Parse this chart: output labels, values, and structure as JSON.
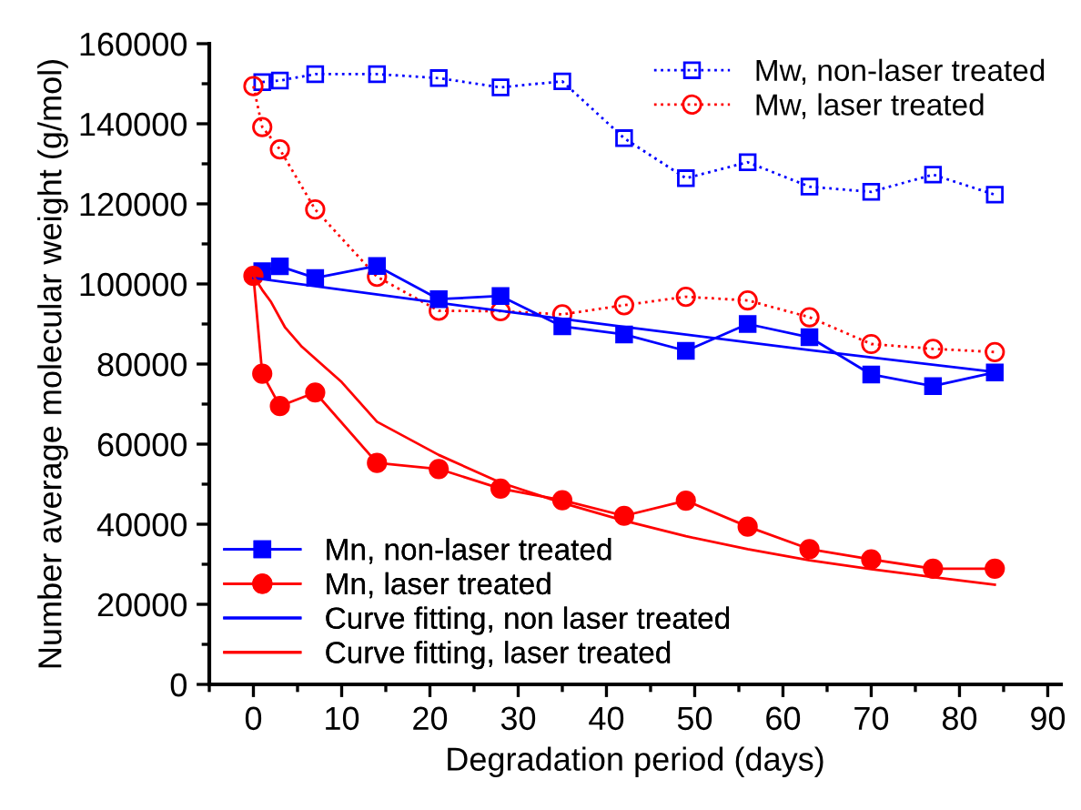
{
  "chart_data": {
    "type": "line",
    "xlabel": "Degradation period (days)",
    "ylabel": "Number average molecular weight (g/mol)",
    "xlim": [
      -5,
      91.5
    ],
    "xticks": [
      0,
      10,
      20,
      30,
      40,
      50,
      60,
      70,
      80,
      90
    ],
    "ylim": [
      0,
      160000
    ],
    "yticks": [
      0,
      20000,
      40000,
      60000,
      80000,
      100000,
      120000,
      140000,
      160000
    ],
    "grid": false,
    "legend": [
      "top right",
      "bottom left"
    ],
    "series": [
      {
        "name": "Mw, non-laser treated",
        "color": "#0000ff",
        "marker": "square",
        "line_style": "dotted",
        "x": [
          1,
          3,
          7,
          14,
          21,
          28,
          35,
          42,
          49,
          56,
          63,
          70,
          77,
          84
        ],
        "values": [
          150400,
          150800,
          152400,
          152400,
          151400,
          149100,
          150600,
          136400,
          126400,
          130400,
          124300,
          123000,
          127300,
          122300
        ]
      },
      {
        "name": "Mw, laser treated",
        "color": "#ff0000",
        "marker": "circle",
        "line_style": "dotted",
        "x": [
          0,
          1,
          3,
          7,
          14,
          21,
          28,
          35,
          42,
          49,
          56,
          63,
          70,
          77,
          84
        ],
        "values": [
          149400,
          139200,
          133600,
          118600,
          101800,
          93300,
          93200,
          92400,
          94700,
          96800,
          95900,
          91700,
          85000,
          83800,
          83000
        ]
      },
      {
        "name": "Mn, non-laser treated",
        "color": "#0000ff",
        "marker": "square",
        "line_style": "solid",
        "x": [
          1,
          3,
          7,
          14,
          21,
          28,
          35,
          42,
          49,
          56,
          63,
          70,
          77,
          84
        ],
        "values": [
          103200,
          104400,
          101500,
          104500,
          96200,
          97000,
          89400,
          87400,
          83300,
          90000,
          86700,
          77400,
          74500,
          77900
        ]
      },
      {
        "name": "Mn, laser treated",
        "color": "#ff0000",
        "marker": "circle",
        "line_style": "solid",
        "x": [
          0,
          1,
          3,
          7,
          14,
          21,
          28,
          35,
          42,
          49,
          56,
          63,
          70,
          77,
          84
        ],
        "values": [
          102000,
          77600,
          69500,
          72900,
          55300,
          53800,
          48900,
          46000,
          42100,
          45900,
          39400,
          33800,
          31200,
          28900,
          28900
        ]
      },
      {
        "name": "Curve fitting, non laser treated",
        "color": "#0000ff",
        "marker": "none",
        "line_style": "solid",
        "x": [
          0,
          21,
          42,
          63,
          84
        ],
        "values": [
          101500,
          95300,
          89300,
          83500,
          78000
        ]
      },
      {
        "name": "Curve fitting, laser treated",
        "color": "#ff0000",
        "marker": "none",
        "line_style": "solid",
        "x": [
          0,
          1,
          2,
          3.6,
          5.5,
          7.7,
          10,
          14,
          21,
          28,
          35,
          42,
          49,
          56,
          63,
          70,
          77,
          84
        ],
        "values": [
          102000,
          98500,
          95500,
          89100,
          84300,
          80000,
          75500,
          65600,
          57300,
          50400,
          45300,
          40900,
          37000,
          33800,
          31000,
          28800,
          26800,
          24900
        ]
      }
    ]
  }
}
